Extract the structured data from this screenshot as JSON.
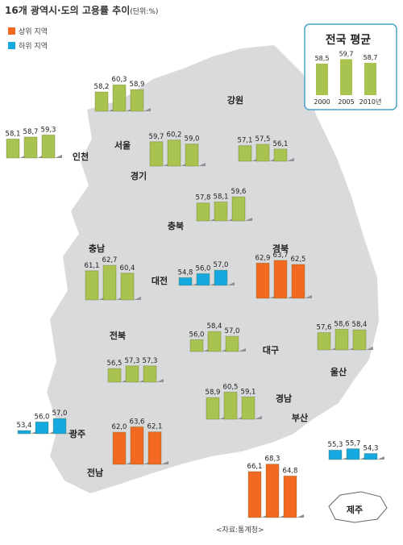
{
  "title": "16개 광역시·도의 고용률 추이",
  "unit": "(단위:%)",
  "legend": [
    {
      "label": "상위 지역",
      "color": "#f26a21"
    },
    {
      "label": "하위 지역",
      "color": "#16a9e1"
    }
  ],
  "normal_color": "#a8c34f",
  "map_color": "#d9dadb",
  "source": "<자료:통계청>",
  "chart_data": {
    "type": "bar",
    "years": [
      "2000",
      "2005",
      "2010년"
    ],
    "national": {
      "name": "전국 평균",
      "values": [
        58.5,
        59.7,
        58.7
      ],
      "value_labels": [
        "58,5",
        "59,7",
        "58,7"
      ]
    },
    "regions": [
      {
        "name": "서울",
        "group": "normal",
        "values": [
          58.2,
          60.3,
          58.9
        ],
        "value_labels": [
          "58,2",
          "60,3",
          "58,9"
        ]
      },
      {
        "name": "인천",
        "group": "normal",
        "values": [
          58.1,
          58.7,
          59.3
        ],
        "value_labels": [
          "58,1",
          "58,7",
          "59,3"
        ]
      },
      {
        "name": "경기",
        "group": "normal",
        "values": [
          59.7,
          60.2,
          59.0
        ],
        "value_labels": [
          "59,7",
          "60,2",
          "59,0"
        ]
      },
      {
        "name": "강원",
        "group": "normal",
        "values": [
          57.1,
          57.5,
          56.1
        ],
        "value_labels": [
          "57,1",
          "57,5",
          "56,1"
        ]
      },
      {
        "name": "충북",
        "group": "normal",
        "values": [
          57.8,
          58.1,
          59.6
        ],
        "value_labels": [
          "57,8",
          "58,1",
          "59,6"
        ]
      },
      {
        "name": "충남",
        "group": "normal",
        "values": [
          61.1,
          62.7,
          60.4
        ],
        "value_labels": [
          "61,1",
          "62,7",
          "60,4"
        ]
      },
      {
        "name": "대전",
        "group": "low",
        "values": [
          54.8,
          56.0,
          57.0
        ],
        "value_labels": [
          "54,8",
          "56,0",
          "57,0"
        ]
      },
      {
        "name": "경북",
        "group": "high",
        "values": [
          62.9,
          63.7,
          62.5
        ],
        "value_labels": [
          "62,9",
          "63,7",
          "62,5"
        ]
      },
      {
        "name": "대구",
        "group": "normal",
        "values": [
          56.0,
          58.4,
          57.0
        ],
        "value_labels": [
          "56,0",
          "58,4",
          "57,0"
        ]
      },
      {
        "name": "전북",
        "group": "normal",
        "values": [
          56.5,
          57.3,
          57.3
        ],
        "value_labels": [
          "56,5",
          "57,3",
          "57,3"
        ]
      },
      {
        "name": "울산",
        "group": "normal",
        "values": [
          57.6,
          58.6,
          58.4
        ],
        "value_labels": [
          "57,6",
          "58,6",
          "58,4"
        ]
      },
      {
        "name": "광주",
        "group": "low",
        "values": [
          53.4,
          56.0,
          57.0
        ],
        "value_labels": [
          "53,4",
          "56,0",
          "57,0"
        ]
      },
      {
        "name": "경남",
        "group": "normal",
        "values": [
          58.9,
          60.5,
          59.1
        ],
        "value_labels": [
          "58,9",
          "60,5",
          "59,1"
        ]
      },
      {
        "name": "전남",
        "group": "high",
        "values": [
          62.0,
          63.6,
          62.1
        ],
        "value_labels": [
          "62,0",
          "63,6",
          "62,1"
        ]
      },
      {
        "name": "부산",
        "group": "low",
        "values": [
          55.3,
          55.7,
          54.3
        ],
        "value_labels": [
          "55,3",
          "55,7",
          "54,3"
        ]
      },
      {
        "name": "제주",
        "group": "high",
        "values": [
          66.1,
          68.3,
          64.8
        ],
        "value_labels": [
          "66,1",
          "68,3",
          "64,8"
        ]
      }
    ]
  }
}
